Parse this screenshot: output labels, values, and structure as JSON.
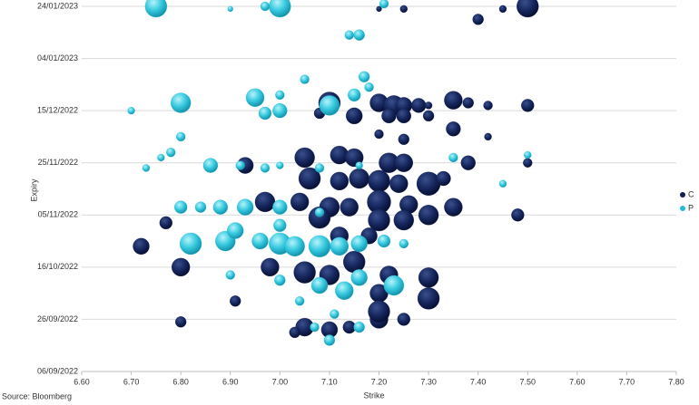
{
  "chart_data": {
    "type": "bubble",
    "x_label": "Strike",
    "y_label": "Expiry",
    "source": "Source: Bloomberg",
    "xlim": [
      6.6,
      7.8
    ],
    "xticks": [
      {
        "value": 6.6,
        "label": "6.60"
      },
      {
        "value": 6.7,
        "label": "6.70"
      },
      {
        "value": 6.8,
        "label": "6.80"
      },
      {
        "value": 6.9,
        "label": "6.90"
      },
      {
        "value": 7.0,
        "label": "7.00"
      },
      {
        "value": 7.1,
        "label": "7.10"
      },
      {
        "value": 7.2,
        "label": "7.20"
      },
      {
        "value": 7.3,
        "label": "7.30"
      },
      {
        "value": 7.4,
        "label": "7.40"
      },
      {
        "value": 7.5,
        "label": "7.50"
      },
      {
        "value": 7.6,
        "label": "7.60"
      },
      {
        "value": 7.7,
        "label": "7.70"
      },
      {
        "value": 7.8,
        "label": "7.80"
      }
    ],
    "ylim": [
      "06/09/2022",
      "24/01/2023"
    ],
    "yticks": [
      "06/09/2022",
      "26/09/2022",
      "16/10/2022",
      "05/11/2022",
      "25/11/2022",
      "15/12/2022",
      "04/01/2023",
      "24/01/2023"
    ],
    "grid": true,
    "legend": "right",
    "series": [
      {
        "name": "C",
        "color": "#0f1d4f",
        "x": [
          7.5,
          7.45,
          7.4,
          7.25,
          7.2,
          7.35,
          7.38,
          7.42,
          7.5,
          7.2,
          7.23,
          7.25,
          7.28,
          7.3,
          7.1,
          7.15,
          7.22,
          7.25,
          7.3,
          7.08,
          7.05,
          7.12,
          7.15,
          7.22,
          7.25,
          7.35,
          7.42,
          7.25,
          7.2,
          6.93,
          7.06,
          7.12,
          7.16,
          7.2,
          7.24,
          7.3,
          7.33,
          7.38,
          7.5,
          6.97,
          7.04,
          7.1,
          7.14,
          7.2,
          7.26,
          7.3,
          7.35,
          7.48,
          6.72,
          6.77,
          7.08,
          7.2,
          7.25,
          7.12,
          7.18,
          6.8,
          6.98,
          7.05,
          7.1,
          7.15,
          7.22,
          7.3,
          7.3,
          7.2,
          6.8,
          7.05,
          7.1,
          7.2,
          7.25,
          7.03,
          7.14,
          6.91,
          7.2
        ],
        "y": [
          "24/01/2023",
          "23/01/2023",
          "19/01/2023",
          "23/01/2023",
          "23/01/2023",
          "19/12/2022",
          "18/12/2022",
          "17/12/2022",
          "17/12/2022",
          "18/12/2022",
          "17/12/2022",
          "17/12/2022",
          "17/12/2022",
          "17/12/2022",
          "18/12/2022",
          "13/12/2022",
          "13/12/2022",
          "13/12/2022",
          "13/12/2022",
          "14/12/2022",
          "27/11/2022",
          "28/11/2022",
          "27/11/2022",
          "25/11/2022",
          "25/11/2022",
          "08/12/2022",
          "05/12/2022",
          "04/12/2022",
          "06/12/2022",
          "24/11/2022",
          "19/11/2022",
          "18/11/2022",
          "19/11/2022",
          "18/11/2022",
          "17/11/2022",
          "17/11/2022",
          "19/11/2022",
          "25/11/2022",
          "25/11/2022",
          "10/11/2022",
          "10/11/2022",
          "08/11/2022",
          "08/11/2022",
          "10/11/2022",
          "09/11/2022",
          "05/11/2022",
          "08/11/2022",
          "05/11/2022",
          "24/10/2022",
          "02/11/2022",
          "04/11/2022",
          "03/11/2022",
          "03/11/2022",
          "28/10/2022",
          "28/10/2022",
          "16/10/2022",
          "16/10/2022",
          "14/10/2022",
          "13/10/2022",
          "18/10/2022",
          "13/10/2022",
          "12/10/2022",
          "04/10/2022",
          "06/10/2022",
          "25/09/2022",
          "23/09/2022",
          "22/09/2022",
          "26/09/2022",
          "26/09/2022",
          "21/09/2022",
          "23/09/2022",
          "03/10/2022",
          "29/09/2022"
        ],
        "sizes": [
          12,
          4,
          6,
          4,
          3,
          10,
          6,
          5,
          7,
          10,
          11,
          9,
          8,
          4,
          12,
          9,
          8,
          8,
          6,
          6,
          11,
          10,
          10,
          11,
          10,
          8,
          4,
          6,
          5,
          9,
          12,
          10,
          11,
          12,
          10,
          13,
          8,
          8,
          5,
          11,
          10,
          11,
          10,
          13,
          10,
          11,
          10,
          7,
          9,
          7,
          12,
          12,
          11,
          10,
          9,
          10,
          10,
          12,
          11,
          12,
          10,
          11,
          12,
          10,
          6,
          10,
          9,
          10,
          7,
          6,
          7,
          6,
          12
        ]
      },
      {
        "name": "P",
        "color": "#22bcd6",
        "x": [
          6.75,
          7.0,
          6.97,
          6.9,
          7.21,
          7.16,
          7.14,
          6.8,
          6.95,
          7.1,
          7.15,
          7.18,
          7.0,
          6.97,
          7.05,
          7.17,
          6.7,
          7.0,
          6.78,
          6.76,
          6.8,
          6.86,
          6.92,
          6.97,
          7.0,
          7.08,
          7.16,
          7.35,
          7.5,
          6.73,
          6.84,
          6.88,
          6.93,
          7.0,
          6.8,
          7.08,
          7.45,
          6.82,
          6.89,
          6.96,
          7.0,
          7.03,
          7.08,
          7.12,
          7.16,
          7.21,
          7.25,
          6.91,
          7.0,
          6.9,
          7.0,
          7.08,
          7.13,
          7.16,
          7.23,
          7.04,
          7.11,
          7.07,
          7.1,
          7.16
        ],
        "y": [
          "24/01/2023",
          "24/01/2023",
          "24/01/2023",
          "23/01/2023",
          "25/01/2023",
          "13/01/2023",
          "13/01/2023",
          "18/12/2022",
          "20/12/2022",
          "17/12/2022",
          "21/12/2022",
          "24/12/2022",
          "15/12/2022",
          "14/12/2022",
          "27/12/2022",
          "28/12/2022",
          "15/12/2022",
          "21/12/2022",
          "29/11/2022",
          "27/11/2022",
          "05/12/2022",
          "24/11/2022",
          "24/11/2022",
          "23/11/2022",
          "24/11/2022",
          "23/11/2022",
          "24/11/2022",
          "27/11/2022",
          "28/11/2022",
          "23/11/2022",
          "08/11/2022",
          "08/11/2022",
          "08/11/2022",
          "08/11/2022",
          "08/11/2022",
          "06/11/2022",
          "17/11/2022",
          "25/10/2022",
          "26/10/2022",
          "26/10/2022",
          "25/10/2022",
          "24/10/2022",
          "24/10/2022",
          "24/10/2022",
          "25/10/2022",
          "26/10/2022",
          "25/10/2022",
          "30/10/2022",
          "01/11/2022",
          "13/10/2022",
          "11/10/2022",
          "09/10/2022",
          "07/10/2022",
          "12/10/2022",
          "09/10/2022",
          "03/10/2022",
          "28/09/2022",
          "23/09/2022",
          "18/09/2022",
          "23/09/2022"
        ],
        "sizes": [
          12,
          12,
          5,
          3,
          5,
          6,
          5,
          11,
          10,
          11,
          7,
          5,
          8,
          7,
          5,
          6,
          4,
          5,
          5,
          4,
          5,
          8,
          5,
          5,
          4,
          5,
          4,
          5,
          4,
          4,
          6,
          8,
          9,
          8,
          7,
          5,
          4,
          12,
          11,
          9,
          12,
          11,
          12,
          10,
          9,
          7,
          5,
          9,
          7,
          5,
          6,
          9,
          10,
          9,
          11,
          5,
          5,
          5,
          6,
          6
        ]
      }
    ]
  }
}
